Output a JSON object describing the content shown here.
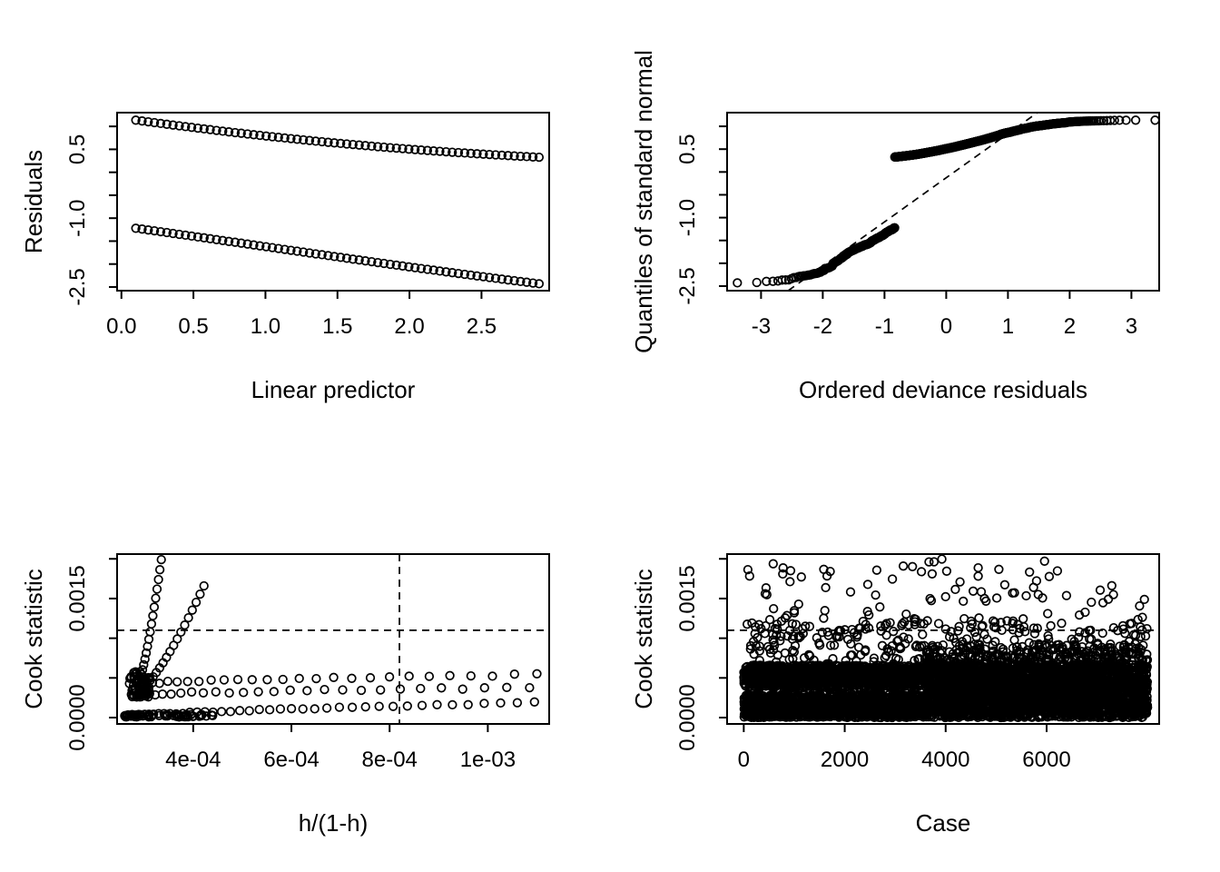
{
  "figure": {
    "type": "glm-diagnostic-plots",
    "background": "#ffffff",
    "stroke_color": "#000000",
    "grid": "2x2",
    "marker": "open-circle",
    "n_cases": 8000
  },
  "chart_data": [
    {
      "id": "residuals-vs-linear-predictor",
      "type": "scatter",
      "xlabel": "Linear predictor",
      "ylabel": "Residuals",
      "xlim": [
        -0.03,
        2.97
      ],
      "ylim": [
        -2.58,
        1.3
      ],
      "xticks": [
        0.0,
        0.5,
        1.0,
        1.5,
        2.0,
        2.5
      ],
      "xtick_labels": [
        "0.0",
        "0.5",
        "1.0",
        "1.5",
        "2.0",
        "2.5"
      ],
      "yticks": [
        1.0,
        0.5,
        0.0,
        -0.5,
        -1.0,
        -1.5,
        -2.0,
        -2.5
      ],
      "ytick_labels": [
        "",
        "0.5",
        "",
        "",
        "-1.0",
        "",
        "",
        "-2.5"
      ],
      "series": [
        {
          "name": "deviance-residuals-y1",
          "kind": "curve",
          "generator": "logit_dev_pos",
          "x_from": 0.1,
          "x_to": 2.9,
          "n": 66,
          "y_at_start": 1.135,
          "y_at_end": 0.327
        },
        {
          "name": "deviance-residuals-y0",
          "kind": "curve",
          "generator": "logit_dev_neg",
          "x_from": 0.1,
          "x_to": 2.9,
          "n": 66,
          "y_at_start": -1.224,
          "y_at_end": -2.432
        }
      ]
    },
    {
      "id": "qq-normal",
      "type": "scatter",
      "xlabel": "Ordered deviance residuals",
      "ylabel": "Quantiles of standard normal",
      "xlim": [
        -3.55,
        3.45
      ],
      "ylim": [
        -2.6,
        1.3
      ],
      "xticks": [
        -3,
        -2,
        -1,
        0,
        1,
        2,
        3
      ],
      "xtick_labels": [
        "-3",
        "-2",
        "-1",
        "0",
        "1",
        "2",
        "3"
      ],
      "yticks": [
        1.0,
        0.5,
        0.0,
        -0.5,
        -1.0,
        -1.5,
        -2.0,
        -2.5
      ],
      "ytick_labels": [
        "",
        "0.5",
        "",
        "",
        "-1.0",
        "",
        "",
        "-2.5"
      ],
      "ref_line": {
        "style": "dashed",
        "slope": 0.966,
        "intercept": -0.127
      },
      "series": [
        {
          "name": "sorted-deviance-residuals",
          "kind": "qq",
          "n": 1400,
          "eta_from": 0.1,
          "eta_to": 2.9,
          "negative_fraction": 0.21,
          "lower_band_y": [
            -2.43,
            -1.15
          ],
          "upper_band_y": [
            0.33,
            1.14
          ],
          "x_range": [
            -3.34,
            3.33
          ]
        }
      ]
    },
    {
      "id": "cook-vs-leverage",
      "type": "scatter",
      "xlabel": "h/(1-h)",
      "ylabel": "Cook statistic",
      "xlim": [
        0.000245,
        0.001125
      ],
      "ylim": [
        -8e-05,
        0.00206
      ],
      "xticks": [
        0.0004,
        0.0006,
        0.0008,
        0.001
      ],
      "xtick_labels": [
        "4e-04",
        "6e-04",
        "8e-04",
        "1e-03"
      ],
      "yticks": [
        0,
        0.0005,
        0.001,
        0.0015,
        0.002
      ],
      "ytick_labels": [
        "0.0000",
        "",
        "",
        "0.0015",
        ""
      ],
      "hline": {
        "y": 0.0011,
        "style": "dashed"
      },
      "vline": {
        "x": 0.00082,
        "style": "dashed"
      },
      "series": [
        {
          "name": "steep-arm-1",
          "kind": "pathrow",
          "n": 18,
          "x_from": 0.00029,
          "x_to": 0.000335,
          "y_from": 0.00048,
          "y_to": 0.00199,
          "x_power": 1.1,
          "y_power": 1.45,
          "jitter_y": 0
        },
        {
          "name": "steep-arm-2",
          "kind": "pathrow",
          "n": 19,
          "x_from": 0.000296,
          "x_to": 0.000422,
          "y_from": 0.00038,
          "y_to": 0.00166,
          "x_power": 1.15,
          "y_power": 1.5,
          "jitter_y": 0
        },
        {
          "name": "row-upper",
          "kind": "pathrow",
          "n": 27,
          "x_from": 0.0003,
          "x_to": 0.0011,
          "y_from": 0.00043,
          "y_to": 0.00054,
          "x_power": 1.5,
          "y_power": 1.0,
          "jitter_y": 1.2e-05
        },
        {
          "name": "row-mid",
          "kind": "pathrow",
          "n": 26,
          "x_from": 0.000305,
          "x_to": 0.001085,
          "y_from": 0.00029,
          "y_to": 0.00038,
          "x_power": 1.5,
          "y_power": 1.0,
          "jitter_y": 1.2e-05
        },
        {
          "name": "row-bottom",
          "kind": "pathrow",
          "n": 46,
          "x_from": 0.000262,
          "x_to": 0.001095,
          "y_from": 1.2e-05,
          "y_to": 0.00019,
          "x_power": 1.9,
          "y_power": 1.3,
          "jitter_y": 8e-06
        },
        {
          "name": "elbow-cluster",
          "kind": "cluster",
          "n": 70,
          "x_from": 0.00027,
          "x_to": 0.000312,
          "y_from": 0.00026,
          "y_to": 0.00058,
          "y_power": 1.6
        },
        {
          "name": "bottom-dense",
          "kind": "cluster",
          "n": 55,
          "x_from": 0.000258,
          "x_to": 0.00044,
          "y_from": 8e-06,
          "y_to": 4e-05,
          "y_power": 1.0
        }
      ]
    },
    {
      "id": "cook-vs-case",
      "type": "scatter",
      "xlabel": "Case",
      "ylabel": "Cook statistic",
      "xlim": [
        -330,
        8230
      ],
      "ylim": [
        -8e-05,
        0.00206
      ],
      "xticks": [
        0,
        2000,
        4000,
        6000
      ],
      "xtick_labels": [
        "0",
        "2000",
        "4000",
        "6000"
      ],
      "yticks": [
        0,
        0.0005,
        0.001,
        0.0015,
        0.002
      ],
      "ytick_labels": [
        "0.0000",
        "",
        "",
        "0.0015",
        ""
      ],
      "hline": {
        "y": 0.0011,
        "style": "dashed"
      },
      "transition_case": 3620,
      "case_max": 8000,
      "series": [
        {
          "name": "upper-left-band",
          "kind": "band",
          "x_from": 0,
          "x_to": 3620,
          "y_from": 0.00038,
          "y_to": 0.00066,
          "n": 1250
        },
        {
          "name": "lower-left-band",
          "kind": "band",
          "x_from": 0,
          "x_to": 3620,
          "y_from": 0.0,
          "y_to": 0.00029,
          "n": 1500
        },
        {
          "name": "right-mass",
          "kind": "band",
          "x_from": 3620,
          "x_to": 8000,
          "y_from": 0.0,
          "y_to": 0.00067,
          "n": 2800
        },
        {
          "name": "right-mid-scatter",
          "kind": "band",
          "x_from": 3620,
          "x_to": 8000,
          "y_from": 0.00067,
          "y_to": 0.00092,
          "n": 240
        },
        {
          "name": "mid-high-scatter",
          "kind": "band",
          "x_from": 30,
          "x_to": 8000,
          "y_from": 0.00066,
          "y_to": 0.00118,
          "n": 260
        },
        {
          "name": "high-outliers",
          "kind": "band",
          "x_from": 30,
          "x_to": 8000,
          "y_from": 0.00118,
          "y_to": 0.002,
          "n": 110,
          "falloff": true
        }
      ]
    }
  ]
}
